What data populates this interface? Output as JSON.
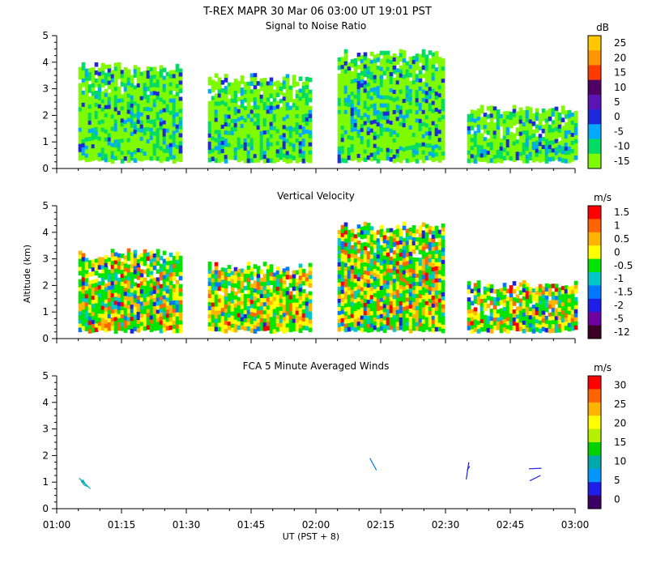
{
  "header": {
    "title": "T-REX   MAPR 30 Mar 06   03:00 UT   19:01   PST"
  },
  "axes": {
    "ylabel": "Altitude (km)",
    "xlabel": "UT  (PST + 8)",
    "x_ticks": [
      "01:00",
      "01:15",
      "01:30",
      "01:45",
      "02:00",
      "02:15",
      "02:30",
      "02:45",
      "03:00"
    ],
    "x_minutes": [
      0,
      120
    ],
    "y_ticks": [
      "0",
      "1",
      "2",
      "3",
      "4",
      "5"
    ],
    "ylim": [
      0,
      5
    ]
  },
  "chart_data": [
    {
      "type": "heatmap",
      "title": "Signal to Noise Ratio",
      "unit": "dB",
      "colorbar": {
        "labels": [
          "25",
          "20",
          "15",
          "10",
          "5",
          "0",
          "-5",
          "-10",
          "-15"
        ],
        "colors": [
          "#ffc800",
          "#ff9600",
          "#ff3c00",
          "#500064",
          "#5a14b4",
          "#1e28dc",
          "#00aaff",
          "#00dc64",
          "#7ffa00"
        ]
      },
      "blocks": [
        {
          "x0": 5,
          "x1": 29,
          "y0": 0.35,
          "y1": 4.0
        },
        {
          "x0": 35,
          "x1": 59,
          "y0": 0.35,
          "y1": 3.6
        },
        {
          "x0": 65,
          "x1": 89,
          "y0": 0.35,
          "y1": 4.5
        },
        {
          "x0": 95,
          "x1": 120,
          "y0": 0.35,
          "y1": 2.4
        }
      ]
    },
    {
      "type": "heatmap",
      "title": "Vertical Velocity",
      "unit": "m/s",
      "colorbar": {
        "labels": [
          "1.5",
          "1",
          "0.5",
          "0",
          "-0.5",
          "-1",
          "-1.5",
          "-2",
          "-5",
          "-12"
        ],
        "colors": [
          "#ff0000",
          "#ff6400",
          "#ffb400",
          "#ffff00",
          "#00e600",
          "#00c8c8",
          "#0078ff",
          "#1e1ee6",
          "#6e00a0",
          "#3c0028"
        ]
      },
      "blocks": [
        {
          "x0": 5,
          "x1": 29,
          "y0": 0.35,
          "y1": 3.4
        },
        {
          "x0": 35,
          "x1": 59,
          "y0": 0.35,
          "y1": 2.9
        },
        {
          "x0": 65,
          "x1": 89,
          "y0": 0.35,
          "y1": 4.4
        },
        {
          "x0": 95,
          "x1": 120,
          "y0": 0.35,
          "y1": 2.2
        }
      ]
    },
    {
      "type": "line",
      "title": "FCA 5 Minute Averaged Winds",
      "unit": "m/s",
      "colorbar": {
        "labels": [
          "30",
          "25",
          "20",
          "15",
          "10",
          "5",
          "0"
        ],
        "colors": [
          "#ff0000",
          "#ff6400",
          "#ffb400",
          "#ffff00",
          "#b4f000",
          "#00d200",
          "#00aaaa",
          "#0096ff",
          "#1e1ee6",
          "#3c0064"
        ]
      },
      "barbs": [
        {
          "x": 5.2,
          "y": 1.15,
          "x2": 7.8,
          "y2": 0.75,
          "color": "#00aaaa"
        },
        {
          "x": 5.6,
          "y": 1.05,
          "x2": 6.6,
          "y2": 0.85,
          "color": "#00aaaa"
        },
        {
          "x": 6.0,
          "y": 1.1,
          "x2": 7.0,
          "y2": 0.82,
          "color": "#00aaaa"
        },
        {
          "x": 72.5,
          "y": 1.9,
          "x2": 74.0,
          "y2": 1.45,
          "color": "#0078ff"
        },
        {
          "x": 94.8,
          "y": 1.1,
          "x2": 95.4,
          "y2": 1.75,
          "color": "#1e1ee6"
        },
        {
          "x": 95.0,
          "y": 1.45,
          "x2": 95.6,
          "y2": 1.6,
          "color": "#1e1ee6"
        },
        {
          "x": 109.5,
          "y": 1.05,
          "x2": 112.0,
          "y2": 1.25,
          "color": "#1e1ee6"
        },
        {
          "x": 109.3,
          "y": 1.5,
          "x2": 112.2,
          "y2": 1.52,
          "color": "#1e1ee6"
        }
      ]
    }
  ]
}
